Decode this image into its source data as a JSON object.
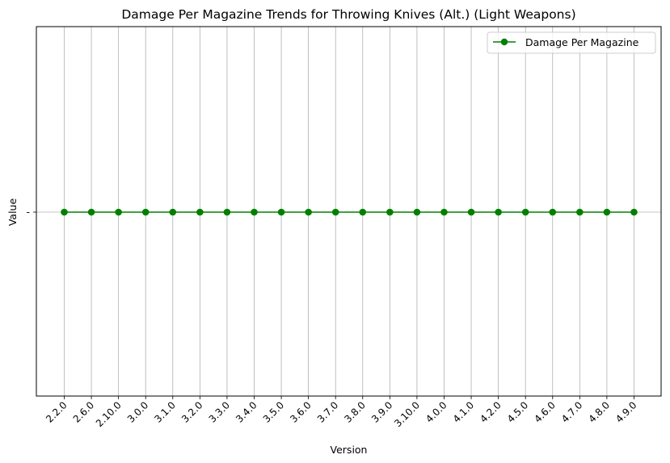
{
  "chart_data": {
    "type": "line",
    "title": "Damage Per Magazine Trends for Throwing Knives (Alt.) (Light Weapons)",
    "xlabel": "Version",
    "ylabel": "Value",
    "categories": [
      "2.2.0",
      "2.6.0",
      "2.10.0",
      "3.0.0",
      "3.1.0",
      "3.2.0",
      "3.3.0",
      "3.4.0",
      "3.5.0",
      "3.6.0",
      "3.7.0",
      "3.8.0",
      "3.9.0",
      "3.10.0",
      "4.0.0",
      "4.1.0",
      "4.2.0",
      "4.5.0",
      "4.6.0",
      "4.7.0",
      "4.8.0",
      "4.9.0"
    ],
    "y_tick_labels": [
      "-"
    ],
    "series": [
      {
        "name": "Damage Per Magazine",
        "values": [
          "-",
          "-",
          "-",
          "-",
          "-",
          "-",
          "-",
          "-",
          "-",
          "-",
          "-",
          "-",
          "-",
          "-",
          "-",
          "-",
          "-",
          "-",
          "-",
          "-",
          "-",
          "-"
        ],
        "color": "#008000",
        "marker": "circle"
      }
    ],
    "grid": true,
    "legend": "top-right"
  }
}
